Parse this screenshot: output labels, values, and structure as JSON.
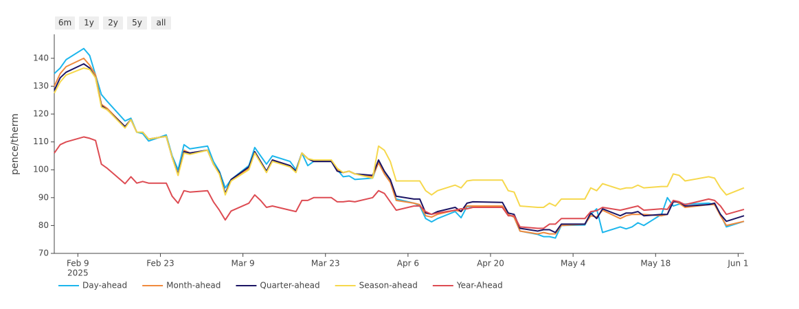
{
  "chart_data": {
    "type": "line",
    "range_buttons": [
      "6m",
      "1y",
      "2y",
      "5y",
      "all"
    ],
    "ylabel": "pence/therm",
    "x": [
      "2025-02-05",
      "2025-02-06",
      "2025-02-07",
      "2025-02-10",
      "2025-02-11",
      "2025-02-12",
      "2025-02-13",
      "2025-02-14",
      "2025-02-17",
      "2025-02-18",
      "2025-02-19",
      "2025-02-20",
      "2025-02-21",
      "2025-02-24",
      "2025-02-25",
      "2025-02-26",
      "2025-02-27",
      "2025-02-28",
      "2025-03-03",
      "2025-03-04",
      "2025-03-05",
      "2025-03-06",
      "2025-03-07",
      "2025-03-10",
      "2025-03-11",
      "2025-03-12",
      "2025-03-13",
      "2025-03-14",
      "2025-03-17",
      "2025-03-18",
      "2025-03-19",
      "2025-03-20",
      "2025-03-21",
      "2025-03-24",
      "2025-03-25",
      "2025-03-26",
      "2025-03-27",
      "2025-03-28",
      "2025-03-31",
      "2025-04-01",
      "2025-04-02",
      "2025-04-03",
      "2025-04-04",
      "2025-04-07",
      "2025-04-08",
      "2025-04-09",
      "2025-04-10",
      "2025-04-11",
      "2025-04-14",
      "2025-04-15",
      "2025-04-16",
      "2025-04-17",
      "2025-04-22",
      "2025-04-23",
      "2025-04-24",
      "2025-04-25",
      "2025-04-28",
      "2025-04-29",
      "2025-04-30",
      "2025-05-01",
      "2025-05-02",
      "2025-05-06",
      "2025-05-07",
      "2025-05-08",
      "2025-05-09",
      "2025-05-12",
      "2025-05-13",
      "2025-05-14",
      "2025-05-15",
      "2025-05-16",
      "2025-05-19",
      "2025-05-20",
      "2025-05-21",
      "2025-05-22",
      "2025-05-23",
      "2025-05-27",
      "2025-05-28",
      "2025-05-29",
      "2025-05-30",
      "2025-06-02"
    ],
    "series": [
      {
        "name": "Day-ahead",
        "color": "#1cb6ec",
        "values": [
          134.5,
          136.5,
          139.5,
          143.5,
          141,
          134,
          127,
          124.5,
          117.5,
          118.5,
          113.5,
          113,
          110.3,
          112.5,
          105,
          100,
          109,
          107.5,
          108.5,
          103,
          99.5,
          93.5,
          96.5,
          101.5,
          108,
          105,
          102,
          105,
          103,
          100,
          106,
          101.5,
          103,
          103,
          100,
          97.5,
          97.8,
          96.5,
          97,
          103,
          99,
          96,
          89.5,
          88,
          87,
          82.5,
          81.3,
          82.5,
          85,
          82.8,
          86.8,
          86.8,
          86.8,
          84,
          83,
          78,
          76.8,
          76,
          76,
          75.5,
          80,
          80.2,
          84,
          86,
          77.5,
          79.5,
          78.8,
          79.5,
          81,
          80,
          84,
          90,
          87,
          87.7,
          87.7,
          88,
          87.5,
          84,
          79.5,
          81.5
        ]
      },
      {
        "name": "Month-ahead",
        "color": "#f08a3c",
        "values": [
          130,
          134.5,
          137,
          140,
          137.5,
          134,
          123.5,
          122,
          115.5,
          118,
          113.5,
          113.5,
          111,
          112,
          104.5,
          98,
          107,
          106,
          107,
          102,
          98.5,
          91.5,
          96,
          100.5,
          106.5,
          103,
          99.5,
          103.5,
          101.5,
          99.5,
          106,
          104,
          103,
          103,
          100,
          99,
          99.5,
          98.5,
          97.5,
          102.5,
          98.5,
          95.5,
          89,
          88,
          87.5,
          83.5,
          83,
          84,
          85.5,
          85,
          87,
          87,
          87,
          84,
          83,
          78,
          77,
          77.5,
          77,
          77,
          80,
          80.5,
          83.5,
          83,
          85.5,
          82.5,
          83.5,
          84,
          84,
          84,
          83.5,
          84,
          89,
          88,
          86.5,
          87.5,
          87.5,
          83.5,
          80,
          81.5
        ]
      },
      {
        "name": "Quarter-ahead",
        "color": "#1b1464",
        "values": [
          128.5,
          133,
          135,
          138,
          136.5,
          133,
          123,
          121.5,
          115.5,
          118,
          113.5,
          113.5,
          111,
          112,
          104.5,
          98.5,
          106.5,
          106,
          107,
          102,
          99,
          91.5,
          96.5,
          101,
          106.5,
          103,
          99.5,
          103.5,
          101.5,
          99.5,
          106,
          104,
          103,
          103,
          99.5,
          99,
          99.5,
          98.5,
          98,
          103.5,
          99.5,
          96.5,
          90.5,
          89.5,
          89.5,
          84.5,
          84,
          85,
          86.5,
          85,
          88,
          88.5,
          88.3,
          84.5,
          84,
          79,
          78,
          78.5,
          78.5,
          77.5,
          80.5,
          80.5,
          84.5,
          82.5,
          86,
          83.5,
          84.5,
          84.5,
          85,
          83.5,
          84,
          84,
          88.5,
          88.5,
          87,
          87.5,
          88,
          84,
          81.5,
          83.5
        ]
      },
      {
        "name": "Season-ahead",
        "color": "#f6d84c",
        "values": [
          127.5,
          131.5,
          134,
          136.5,
          136,
          133,
          122.5,
          121.5,
          115,
          118,
          113.5,
          113.5,
          111,
          112,
          104.5,
          98,
          106,
          105.5,
          107,
          102,
          98.5,
          91,
          96,
          100,
          106,
          102.5,
          99,
          103,
          101,
          99,
          106,
          104,
          103.5,
          103.5,
          100.5,
          99,
          99.5,
          98.5,
          97,
          108.5,
          107,
          103,
          96,
          96,
          96,
          92.5,
          91,
          92.5,
          94.5,
          93.5,
          96,
          96.3,
          96.3,
          92.5,
          92,
          87,
          86.5,
          86.5,
          88,
          87,
          89.5,
          89.5,
          93.5,
          92.5,
          95,
          93,
          93.5,
          93.5,
          94.5,
          93.5,
          94,
          94,
          98.5,
          98,
          96,
          97.5,
          97,
          93.5,
          91,
          93.5
        ]
      },
      {
        "name": "Year-Ahead",
        "color": "#dd4b52",
        "values": [
          106,
          109,
          110,
          111.8,
          111.3,
          110.5,
          102,
          100.5,
          95,
          97.5,
          95.2,
          95.8,
          95.2,
          95.2,
          90.5,
          88,
          92.5,
          92,
          92.5,
          88.5,
          85.5,
          82,
          85.2,
          88,
          91,
          89,
          86.5,
          87,
          85.5,
          85,
          89,
          89,
          90,
          90,
          88.5,
          88.5,
          88.8,
          88.5,
          90,
          92.5,
          91.5,
          88.5,
          85.5,
          87,
          87,
          85,
          84,
          84.5,
          85.5,
          86,
          86,
          86.5,
          86.5,
          83.5,
          83.5,
          79.5,
          79,
          79,
          80.5,
          80.5,
          82.5,
          82.5,
          85,
          85.3,
          86.5,
          85.5,
          86,
          86.5,
          87,
          85.5,
          86,
          85.8,
          89,
          88.5,
          87.5,
          89.5,
          89,
          87,
          84,
          85.8
        ]
      }
    ],
    "xlim": [
      "2025-02-05",
      "2025-06-02"
    ],
    "xticks": [
      {
        "value": "2025-02-09",
        "label": "Feb 9"
      },
      {
        "value": "2025-02-23",
        "label": "Feb 23"
      },
      {
        "value": "2025-03-09",
        "label": "Mar 9"
      },
      {
        "value": "2025-03-23",
        "label": "Mar 23"
      },
      {
        "value": "2025-04-06",
        "label": "Apr 6"
      },
      {
        "value": "2025-04-20",
        "label": "Apr 20"
      },
      {
        "value": "2025-05-04",
        "label": "May 4"
      },
      {
        "value": "2025-05-18",
        "label": "May 18"
      },
      {
        "value": "2025-06-01",
        "label": "Jun 1"
      }
    ],
    "x_year_label": "2025",
    "ylim": [
      70,
      148.6
    ],
    "yticks": [
      70,
      80,
      90,
      100,
      110,
      120,
      130,
      140
    ],
    "grid": false,
    "legend": "bottom"
  }
}
